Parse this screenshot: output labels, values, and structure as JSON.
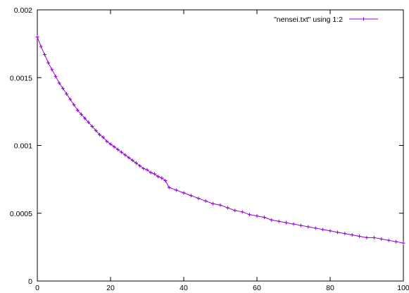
{
  "chart_data": {
    "type": "line",
    "title": "",
    "xlabel": "",
    "ylabel": "",
    "xlim": [
      0,
      100
    ],
    "ylim": [
      0,
      0.002
    ],
    "x_ticks": [
      {
        "value": 0,
        "label": "0"
      },
      {
        "value": 20,
        "label": "20"
      },
      {
        "value": 40,
        "label": "40"
      },
      {
        "value": 60,
        "label": "60"
      },
      {
        "value": 80,
        "label": "80"
      },
      {
        "value": 100,
        "label": "100"
      }
    ],
    "y_ticks": [
      {
        "value": 0,
        "label": "0"
      },
      {
        "value": 0.0005,
        "label": "0.0005"
      },
      {
        "value": 0.001,
        "label": "0.001"
      },
      {
        "value": 0.0015,
        "label": "0.0015"
      },
      {
        "value": 0.002,
        "label": "0.002"
      }
    ],
    "grid": false,
    "legend_position": "top-right",
    "series": [
      {
        "name": "\"nensei.txt\" using 1:2",
        "color": "#9400d3",
        "marker": "plus",
        "x": [
          0,
          1,
          2,
          3,
          4,
          5,
          6,
          7,
          8,
          9,
          10,
          11,
          12,
          13,
          14,
          15,
          16,
          17,
          18,
          19,
          20,
          21,
          22,
          23,
          24,
          25,
          26,
          27,
          28,
          29,
          30,
          31,
          32,
          33,
          34,
          35,
          36,
          38,
          40,
          42,
          44,
          46,
          48,
          50,
          52,
          54,
          56,
          58,
          60,
          62,
          64,
          66,
          68,
          70,
          72,
          74,
          76,
          78,
          80,
          82,
          84,
          86,
          88,
          90,
          92,
          94,
          96,
          98,
          100
        ],
        "y": [
          0.0018,
          0.00173,
          0.00167,
          0.00161,
          0.00156,
          0.00151,
          0.00146,
          0.00142,
          0.00138,
          0.00134,
          0.0013,
          0.00126,
          0.00123,
          0.0012,
          0.00117,
          0.00114,
          0.00111,
          0.00108,
          0.00106,
          0.00103,
          0.00101,
          0.00099,
          0.00097,
          0.00095,
          0.00093,
          0.00091,
          0.00089,
          0.00087,
          0.00085,
          0.00083,
          0.00082,
          0.0008,
          0.00079,
          0.00077,
          0.00076,
          0.00074,
          0.00069,
          0.00067,
          0.00065,
          0.00063,
          0.00061,
          0.00059,
          0.00057,
          0.00056,
          0.00054,
          0.00052,
          0.00051,
          0.00049,
          0.00048,
          0.00047,
          0.00045,
          0.00044,
          0.00043,
          0.00042,
          0.00041,
          0.0004,
          0.00039,
          0.00038,
          0.00037,
          0.00036,
          0.00035,
          0.00034,
          0.00033,
          0.00032,
          0.00032,
          0.00031,
          0.0003,
          0.00029,
          0.00028
        ]
      }
    ]
  }
}
